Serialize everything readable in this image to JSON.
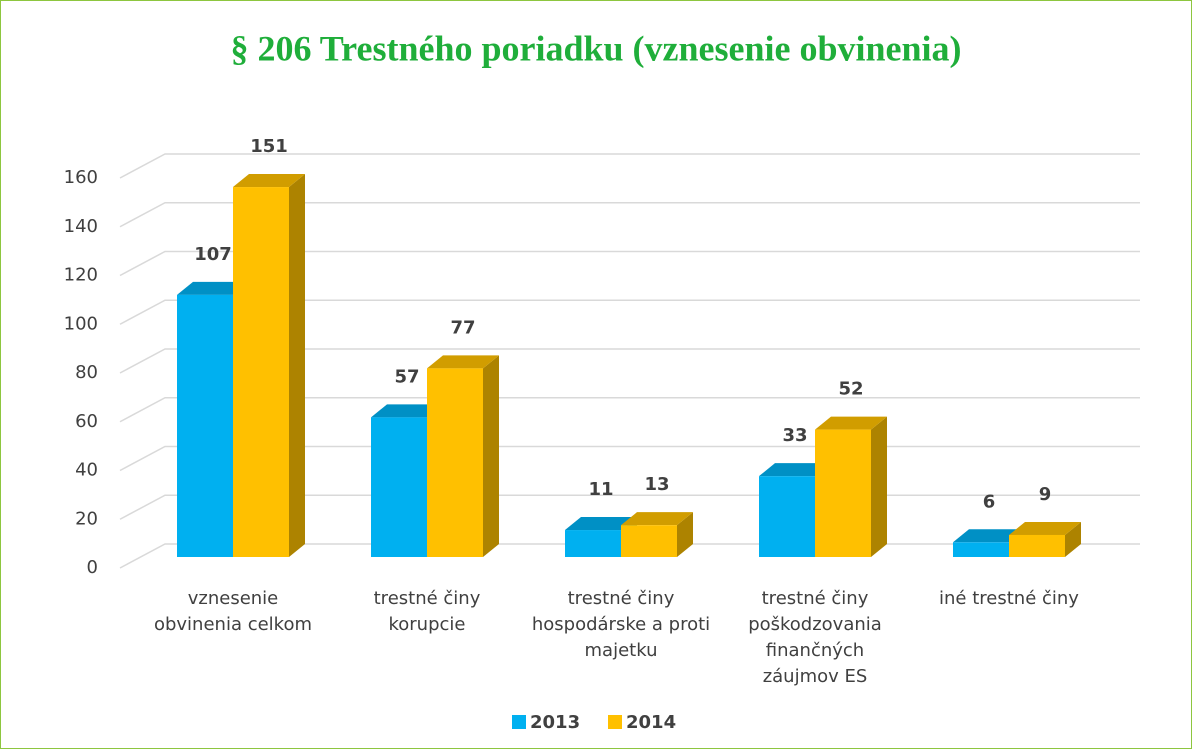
{
  "chart_data": {
    "type": "bar3d",
    "title": "§ 206 Trestného poriadku (vznesenie obvinenia)",
    "categories": [
      "vznesenie obvinenia celkom",
      "trestné činy korupcie",
      "trestné činy hospodárske a proti majetku",
      "trestné činy poškodzovania finančných záujmov ES",
      "iné trestné činy"
    ],
    "series": [
      {
        "name": "2013",
        "color": "#00b0f0",
        "values": [
          107,
          57,
          11,
          33,
          6
        ]
      },
      {
        "name": "2014",
        "color": "#ffc000",
        "values": [
          151,
          77,
          13,
          52,
          9
        ]
      }
    ],
    "ylim": [
      0,
      160
    ],
    "yticks": [
      0,
      20,
      40,
      60,
      80,
      100,
      120,
      140,
      160
    ],
    "grid": true,
    "legend": "bottom",
    "title_color": "#1fae3a"
  }
}
